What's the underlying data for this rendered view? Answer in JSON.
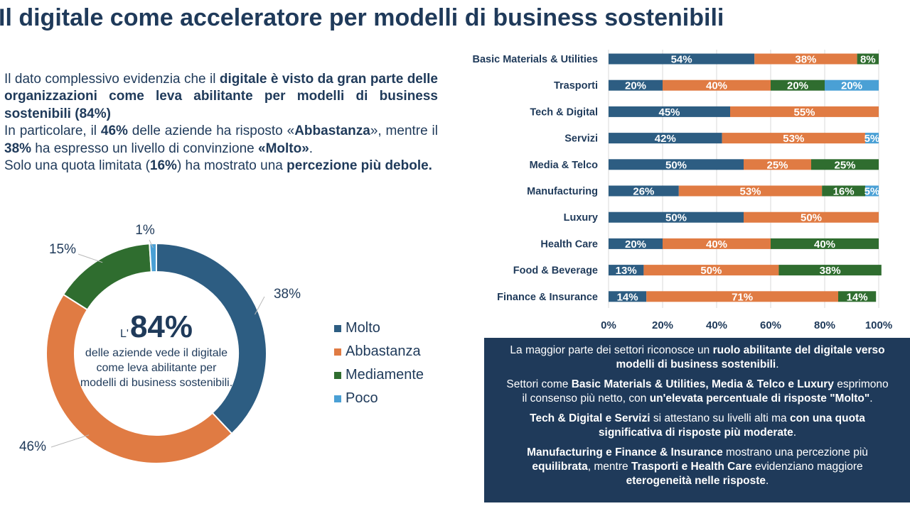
{
  "title": "Il digitale come acceleratore per modelli di business sostenibili",
  "intro": {
    "p1": [
      {
        "t": "Il dato complessivo evidenzia che il ",
        "b": false
      },
      {
        "t": "digitale è visto da gran parte delle organizzazioni come leva abilitante per modelli di business sostenibili (84%)",
        "b": true
      }
    ],
    "p2": [
      {
        "t": "In particolare, il ",
        "b": false
      },
      {
        "t": "46%",
        "b": true
      },
      {
        "t": " delle aziende ha risposto «",
        "b": false
      },
      {
        "t": "Abbastanza",
        "b": true
      },
      {
        "t": "», mentre il ",
        "b": false
      },
      {
        "t": "38%",
        "b": true
      },
      {
        "t": " ha espresso un livello di convinzione ",
        "b": false
      },
      {
        "t": "«Molto»",
        "b": true
      },
      {
        "t": ".",
        "b": false
      }
    ],
    "p3": [
      {
        "t": "Solo una quota limitata (",
        "b": false
      },
      {
        "t": "16%",
        "b": true
      },
      {
        "t": ") ha mostrato una ",
        "b": false
      },
      {
        "t": "percezione più debole.",
        "b": true
      }
    ]
  },
  "donut_center": {
    "prefix": "L'",
    "value": "84%",
    "description": "delle aziende vede il digitale come leva abilitante per modelli di business sostenibili."
  },
  "colors": {
    "Molto": "#2d5d82",
    "Abbastanza": "#e07b43",
    "Mediamente": "#2f6d2f",
    "Poco": "#4aa0d5",
    "dark": "#1f3a5a"
  },
  "legend": [
    "Molto",
    "Abbastanza",
    "Mediamente",
    "Poco"
  ],
  "chart_data": [
    {
      "type": "pie",
      "variant": "donut",
      "categories": [
        "Molto",
        "Abbastanza",
        "Mediamente",
        "Poco"
      ],
      "values": [
        38,
        46,
        15,
        1
      ],
      "labels": [
        "38%",
        "46%",
        "15%",
        "1%"
      ],
      "legend_position": "right"
    },
    {
      "type": "bar",
      "orientation": "horizontal",
      "stacked": "percent",
      "categories": [
        "Basic Materials & Utilities",
        "Trasporti",
        "Tech & Digital",
        "Servizi",
        "Media & Telco",
        "Manufacturing",
        "Luxury",
        "Health Care",
        "Food & Beverage",
        "Finance & Insurance"
      ],
      "series": [
        {
          "name": "Molto",
          "values": [
            54,
            20,
            45,
            42,
            50,
            26,
            50,
            20,
            13,
            14
          ]
        },
        {
          "name": "Abbastanza",
          "values": [
            38,
            40,
            55,
            53,
            25,
            53,
            50,
            40,
            50,
            71
          ]
        },
        {
          "name": "Mediamente",
          "values": [
            8,
            20,
            0,
            0,
            25,
            16,
            0,
            40,
            38,
            14
          ]
        },
        {
          "name": "Poco",
          "values": [
            0,
            20,
            0,
            5,
            0,
            5,
            0,
            0,
            0,
            0
          ]
        }
      ],
      "xlim": [
        0,
        100
      ],
      "xticks": [
        "0%",
        "20%",
        "40%",
        "60%",
        "80%",
        "100%"
      ],
      "grid": true
    }
  ],
  "note": [
    [
      {
        "t": "La maggior parte dei settori riconosce un ",
        "b": false
      },
      {
        "t": "ruolo abilitante del digitale verso",
        "b": true
      },
      {
        "t": "\n",
        "b": false
      },
      {
        "t": "modelli di business sostenibili",
        "b": true
      },
      {
        "t": ".",
        "b": false
      }
    ],
    [
      {
        "t": "Settori come ",
        "b": false
      },
      {
        "t": "Basic Materials & Utilities, Media & Telco e Luxury",
        "b": true
      },
      {
        "t": " esprimono",
        "b": false
      },
      {
        "t": "\n",
        "b": false
      },
      {
        "t": "il consenso più netto, con ",
        "b": false
      },
      {
        "t": "un'elevata percentuale di risposte \"Molto\"",
        "b": true
      },
      {
        "t": ".",
        "b": false
      }
    ],
    [
      {
        "t": "Tech & Digital e Servizi",
        "b": true
      },
      {
        "t": " si attestano su livelli alti ma ",
        "b": false
      },
      {
        "t": "con una quota",
        "b": true
      },
      {
        "t": "\n",
        "b": false
      },
      {
        "t": "significativa di risposte più moderate",
        "b": true
      },
      {
        "t": ".",
        "b": false
      }
    ],
    [
      {
        "t": "Manufacturing e Finance & Insurance",
        "b": true
      },
      {
        "t": " mostrano una percezione più",
        "b": false
      },
      {
        "t": "\n",
        "b": false
      },
      {
        "t": "equilibrata",
        "b": true
      },
      {
        "t": ", mentre ",
        "b": false
      },
      {
        "t": "Trasporti e Health Care",
        "b": true
      },
      {
        "t": " evidenziano maggiore",
        "b": false
      },
      {
        "t": "\n",
        "b": false
      },
      {
        "t": "eterogeneità nelle risposte",
        "b": true
      },
      {
        "t": ".",
        "b": false
      }
    ]
  ]
}
